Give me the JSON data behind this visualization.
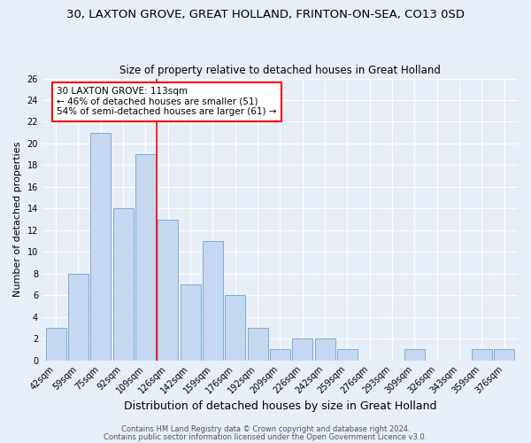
{
  "title": "30, LAXTON GROVE, GREAT HOLLAND, FRINTON-ON-SEA, CO13 0SD",
  "subtitle": "Size of property relative to detached houses in Great Holland",
  "xlabel": "Distribution of detached houses by size in Great Holland",
  "ylabel": "Number of detached properties",
  "bar_color": "#c5d8f0",
  "bar_edge_color": "#7aafd4",
  "categories": [
    "42sqm",
    "59sqm",
    "75sqm",
    "92sqm",
    "109sqm",
    "126sqm",
    "142sqm",
    "159sqm",
    "176sqm",
    "192sqm",
    "209sqm",
    "226sqm",
    "242sqm",
    "259sqm",
    "276sqm",
    "293sqm",
    "309sqm",
    "326sqm",
    "343sqm",
    "359sqm",
    "376sqm"
  ],
  "values": [
    3,
    8,
    21,
    14,
    19,
    13,
    7,
    11,
    6,
    3,
    1,
    2,
    2,
    1,
    0,
    0,
    1,
    0,
    0,
    1,
    1
  ],
  "ylim": [
    0,
    26
  ],
  "yticks": [
    0,
    2,
    4,
    6,
    8,
    10,
    12,
    14,
    16,
    18,
    20,
    22,
    24,
    26
  ],
  "annotation_title": "30 LAXTON GROVE: 113sqm",
  "annotation_line1": "← 46% of detached houses are smaller (51)",
  "annotation_line2": "54% of semi-detached houses are larger (61) →",
  "footer1": "Contains HM Land Registry data © Crown copyright and database right 2024.",
  "footer2": "Contains public sector information licensed under the Open Government Licence v3.0.",
  "background_color": "#e8eef7",
  "grid_color": "#ffffff",
  "title_fontsize": 9.5,
  "subtitle_fontsize": 8.5,
  "xlabel_fontsize": 9,
  "ylabel_fontsize": 8,
  "tick_fontsize": 7,
  "annot_fontsize": 7.5,
  "footer_fontsize": 6
}
